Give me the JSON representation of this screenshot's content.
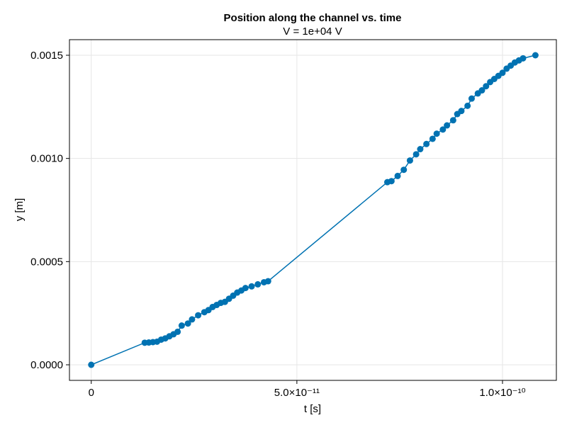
{
  "chart_data": {
    "type": "scatter",
    "title": "Position along the channel vs. time",
    "subtitle": "V = 1e+04 V",
    "xlabel": "t [s]",
    "ylabel": "y [m]",
    "xlim": [
      -5.3e-12,
      1.131e-10
    ],
    "ylim": [
      -7.55e-05,
      0.0015755
    ],
    "grid": true,
    "x_ticks": [
      {
        "value": 0,
        "label": "0"
      },
      {
        "value": 5e-11,
        "label": "5.0×10⁻¹¹"
      },
      {
        "value": 1e-10,
        "label": "1.0×10⁻¹⁰"
      }
    ],
    "y_ticks": [
      {
        "value": 0.0,
        "label": "0.0000"
      },
      {
        "value": 0.0005,
        "label": "0.0005"
      },
      {
        "value": 0.001,
        "label": "0.0010"
      },
      {
        "value": 0.0015,
        "label": "0.0015"
      }
    ],
    "series": [
      {
        "color": "#0072b2",
        "line": true,
        "marker": "circle",
        "x": [
          0,
          1.3e-11,
          1.4e-11,
          1.5e-11,
          1.6e-11,
          1.7e-11,
          1.8e-11,
          1.9e-11,
          2e-11,
          2.1e-11,
          2.2e-11,
          2.35e-11,
          2.45e-11,
          2.6e-11,
          2.75e-11,
          2.85e-11,
          2.95e-11,
          3.05e-11,
          3.15e-11,
          3.25e-11,
          3.35e-11,
          3.45e-11,
          3.55e-11,
          3.65e-11,
          3.75e-11,
          3.9e-11,
          4.05e-11,
          4.2e-11,
          4.3e-11,
          7.2e-11,
          7.3e-11,
          7.45e-11,
          7.6e-11,
          7.75e-11,
          7.9e-11,
          8e-11,
          8.15e-11,
          8.3e-11,
          8.4e-11,
          8.55e-11,
          8.65e-11,
          8.8e-11,
          8.9e-11,
          9e-11,
          9.15e-11,
          9.25e-11,
          9.4e-11,
          9.5e-11,
          9.6e-11,
          9.7e-11,
          9.8e-11,
          9.9e-11,
          1e-10,
          1.01e-10,
          1.02e-10,
          1.03e-10,
          1.04e-10,
          1.05e-10,
          1.08e-10
        ],
        "y": [
          0.0,
          0.000107,
          0.000108,
          0.00011,
          0.000112,
          0.000122,
          0.000128,
          0.000138,
          0.000148,
          0.00016,
          0.00019,
          0.0002,
          0.00022,
          0.00024,
          0.000255,
          0.000265,
          0.00028,
          0.00029,
          0.0003,
          0.000305,
          0.00032,
          0.000335,
          0.00035,
          0.00036,
          0.000372,
          0.00038,
          0.00039,
          0.0004,
          0.000405,
          0.000885,
          0.00089,
          0.000915,
          0.000945,
          0.00099,
          0.00102,
          0.001045,
          0.00107,
          0.001095,
          0.00112,
          0.00114,
          0.00116,
          0.001185,
          0.001215,
          0.00123,
          0.001255,
          0.00129,
          0.001315,
          0.00133,
          0.00135,
          0.00137,
          0.001385,
          0.0014,
          0.001415,
          0.001435,
          0.00145,
          0.001465,
          0.001475,
          0.001485,
          0.0015
        ]
      }
    ]
  }
}
